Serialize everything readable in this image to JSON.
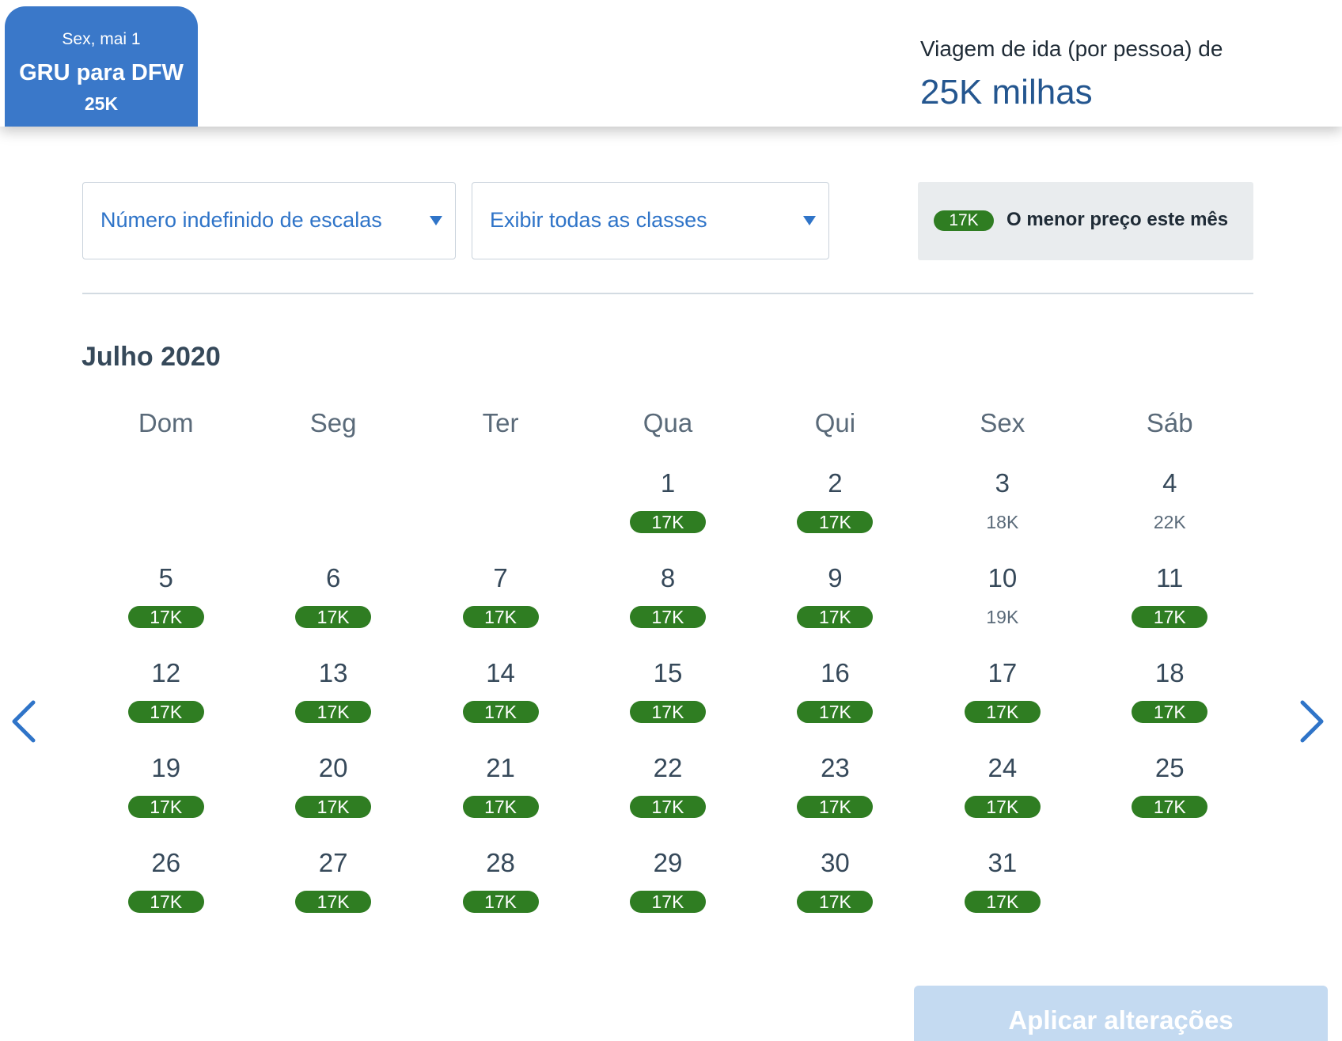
{
  "selected_trip": {
    "date": "Sex, mai 1",
    "route": "GRU para DFW",
    "miles": "25K"
  },
  "fare_info": {
    "label": "Viagem de ida (por pessoa) de",
    "price": "25K milhas"
  },
  "filters": {
    "stops": "Número indefinido de escalas",
    "classes": "Exibir todas as classes"
  },
  "legend": {
    "badge": "17K",
    "text": "O menor preço este mês"
  },
  "calendar": {
    "month": "Julho 2020",
    "weekdays": [
      "Dom",
      "Seg",
      "Ter",
      "Qua",
      "Qui",
      "Sex",
      "Sáb"
    ],
    "leading_empty_days": 3,
    "days": [
      {
        "day": "1",
        "price": "17K",
        "lowest": true
      },
      {
        "day": "2",
        "price": "17K",
        "lowest": true
      },
      {
        "day": "3",
        "price": "18K",
        "lowest": false
      },
      {
        "day": "4",
        "price": "22K",
        "lowest": false
      },
      {
        "day": "5",
        "price": "17K",
        "lowest": true
      },
      {
        "day": "6",
        "price": "17K",
        "lowest": true
      },
      {
        "day": "7",
        "price": "17K",
        "lowest": true
      },
      {
        "day": "8",
        "price": "17K",
        "lowest": true
      },
      {
        "day": "9",
        "price": "17K",
        "lowest": true
      },
      {
        "day": "10",
        "price": "19K",
        "lowest": false
      },
      {
        "day": "11",
        "price": "17K",
        "lowest": true
      },
      {
        "day": "12",
        "price": "17K",
        "lowest": true
      },
      {
        "day": "13",
        "price": "17K",
        "lowest": true
      },
      {
        "day": "14",
        "price": "17K",
        "lowest": true
      },
      {
        "day": "15",
        "price": "17K",
        "lowest": true
      },
      {
        "day": "16",
        "price": "17K",
        "lowest": true
      },
      {
        "day": "17",
        "price": "17K",
        "lowest": true
      },
      {
        "day": "18",
        "price": "17K",
        "lowest": true
      },
      {
        "day": "19",
        "price": "17K",
        "lowest": true
      },
      {
        "day": "20",
        "price": "17K",
        "lowest": true
      },
      {
        "day": "21",
        "price": "17K",
        "lowest": true
      },
      {
        "day": "22",
        "price": "17K",
        "lowest": true
      },
      {
        "day": "23",
        "price": "17K",
        "lowest": true
      },
      {
        "day": "24",
        "price": "17K",
        "lowest": true
      },
      {
        "day": "25",
        "price": "17K",
        "lowest": true
      },
      {
        "day": "26",
        "price": "17K",
        "lowest": true
      },
      {
        "day": "27",
        "price": "17K",
        "lowest": true
      },
      {
        "day": "28",
        "price": "17K",
        "lowest": true
      },
      {
        "day": "29",
        "price": "17K",
        "lowest": true
      },
      {
        "day": "30",
        "price": "17K",
        "lowest": true
      },
      {
        "day": "31",
        "price": "17K",
        "lowest": true
      }
    ]
  },
  "navigation": {
    "prev_icon": "chevron-left-icon",
    "next_icon": "chevron-right-icon"
  },
  "apply_button": "Aplicar alterações",
  "colors": {
    "brand_blue": "#3a78c9",
    "price_blue": "#24568f",
    "lowest_green": "#2f7d22",
    "apply_disabled": "#c4daf1"
  }
}
